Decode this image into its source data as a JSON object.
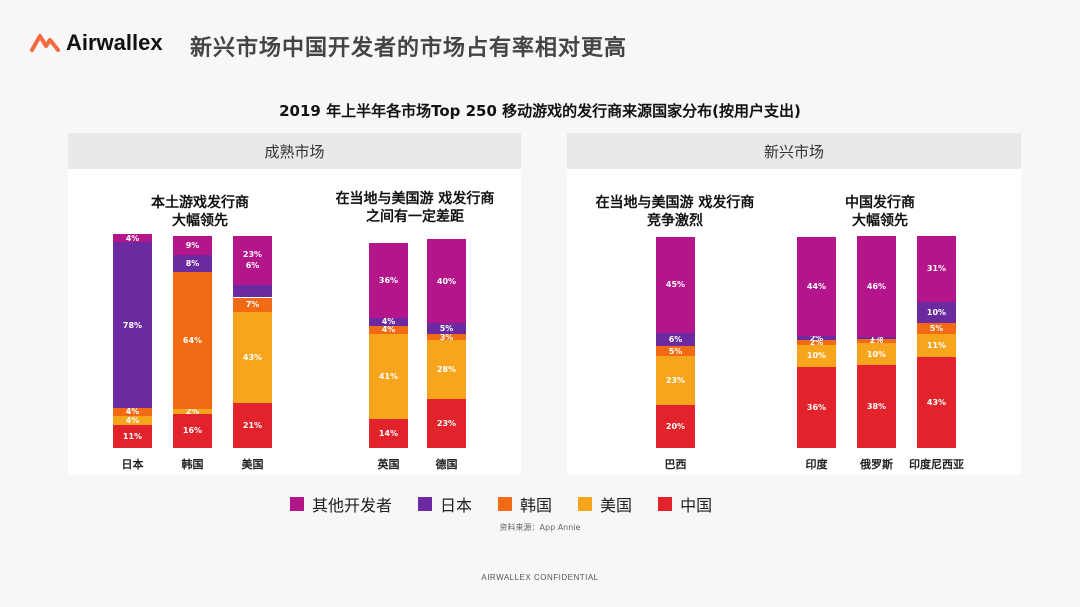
{
  "header": {
    "logo_text": "Airwallex",
    "headline": "新兴市场中国开发者的市场占有率相对更高"
  },
  "colors": {
    "other": "#b5158a",
    "japan": "#6c2aa0",
    "korea": "#f26a13",
    "usa": "#f7a51d",
    "china": "#e3232b",
    "logo_accent": "#f26a3f"
  },
  "chart_data": {
    "type": "bar",
    "stacked": true,
    "title": "2019 年上半年各市场Top 250 移动游戏的发行商来源国家分布(按用户支出)",
    "panels": [
      {
        "label": "成熟市场",
        "groups": [
          {
            "title_lines": [
              "本土游戏发行商",
              "大幅领先"
            ],
            "categories": [
              "日本",
              "韩国",
              "美国"
            ]
          },
          {
            "title_lines": [
              "在当地与美国游 戏发行商",
              "之间有一定差距"
            ],
            "categories": [
              "英国",
              "德国"
            ]
          }
        ]
      },
      {
        "label": "新兴市场",
        "groups": [
          {
            "title_lines": [
              "在当地与美国游 戏发行商",
              "竞争激烈"
            ],
            "categories": [
              "巴西"
            ]
          },
          {
            "title_lines": [
              "中国发行商",
              "大幅领先"
            ],
            "categories": [
              "印度",
              "俄罗斯",
              "印度尼西亚"
            ]
          }
        ]
      }
    ],
    "categories": [
      "日本",
      "韩国",
      "美国",
      "英国",
      "德国",
      "巴西",
      "印度",
      "俄罗斯",
      "印度尼西亚"
    ],
    "series": [
      {
        "name": "中国",
        "key": "china",
        "values": [
          11,
          16,
          21,
          14,
          23,
          20,
          36,
          38,
          43
        ]
      },
      {
        "name": "美国",
        "key": "usa",
        "values": [
          4,
          2,
          43,
          41,
          28,
          23,
          10,
          10,
          11
        ]
      },
      {
        "name": "韩国",
        "key": "korea",
        "values": [
          4,
          64,
          7,
          4,
          3,
          5,
          2,
          2,
          5
        ]
      },
      {
        "name": "日本",
        "key": "japan",
        "values": [
          78,
          8,
          6,
          4,
          5,
          6,
          2,
          1,
          10
        ]
      },
      {
        "name": "其他开发者",
        "key": "other",
        "values": [
          4,
          9,
          23,
          36,
          40,
          45,
          44,
          46,
          31
        ]
      }
    ],
    "value_labels": [
      [
        "11%",
        "4%",
        "4%",
        "78%",
        "4%"
      ],
      [
        "16%",
        "2%",
        "64%",
        "8%",
        "9%"
      ],
      [
        "21%",
        "43%",
        "7%",
        "",
        "23%\n6%"
      ],
      [
        "14%",
        "41%",
        "4%",
        "4%",
        "36%"
      ],
      [
        "23%",
        "28%",
        "3%",
        "5%",
        "40%"
      ],
      [
        "20%",
        "23%",
        "5%",
        "6%",
        "45%"
      ],
      [
        "36%",
        "10%",
        "2%",
        "2%",
        "44%"
      ],
      [
        "38%",
        "10%",
        "2%",
        "1%",
        "46%"
      ],
      [
        "43%",
        "11%",
        "5%",
        "10%",
        "31%"
      ]
    ],
    "legend": [
      "其他开发者",
      "日本",
      "韩国",
      "美国",
      "中国"
    ],
    "legend_placement": "bottom",
    "ylim": [
      0,
      100
    ]
  },
  "source": "资料来源：App Annie",
  "footer": "AIRWALLEX CONFIDENTIAL"
}
